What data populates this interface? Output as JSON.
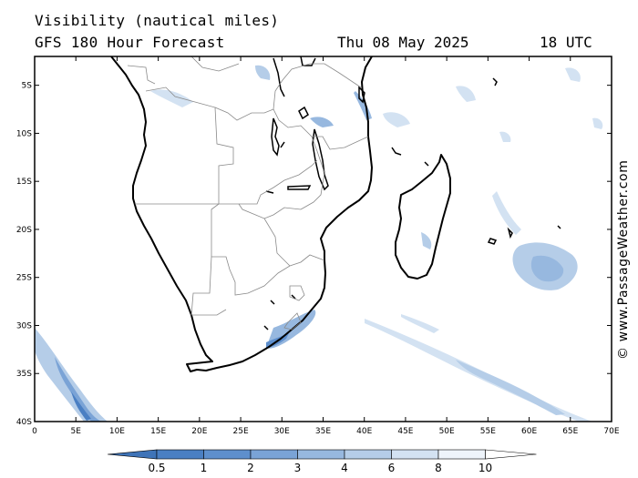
{
  "header": {
    "title": "Visibility (nautical miles)",
    "subtitle": "GFS 180 Hour Forecast",
    "date": "Thu 08 May 2025",
    "time": "18 UTC"
  },
  "credit": "© www.PassageWeather.com",
  "map": {
    "region": "Southern Africa and Madagascar",
    "lon_range": [
      0,
      70
    ],
    "lat_range": [
      -40,
      -2
    ],
    "lat_ticks": [
      "5S",
      "10S",
      "15S",
      "20S",
      "25S",
      "30S",
      "35S",
      "40S"
    ],
    "lon_ticks": [
      "0",
      "5E",
      "10E",
      "15E",
      "20E",
      "25E",
      "30E",
      "35E",
      "40E",
      "45E",
      "50E",
      "55E",
      "60E",
      "65E",
      "70E"
    ]
  },
  "colorbar": {
    "labels": [
      "0.5",
      "1",
      "2",
      "3",
      "4",
      "6",
      "8",
      "10"
    ],
    "colors": [
      "#4a7fc3",
      "#5e8fcd",
      "#7aa3d6",
      "#97b8df",
      "#b5cde8",
      "#d3e2f2",
      "#eef4fb"
    ]
  }
}
